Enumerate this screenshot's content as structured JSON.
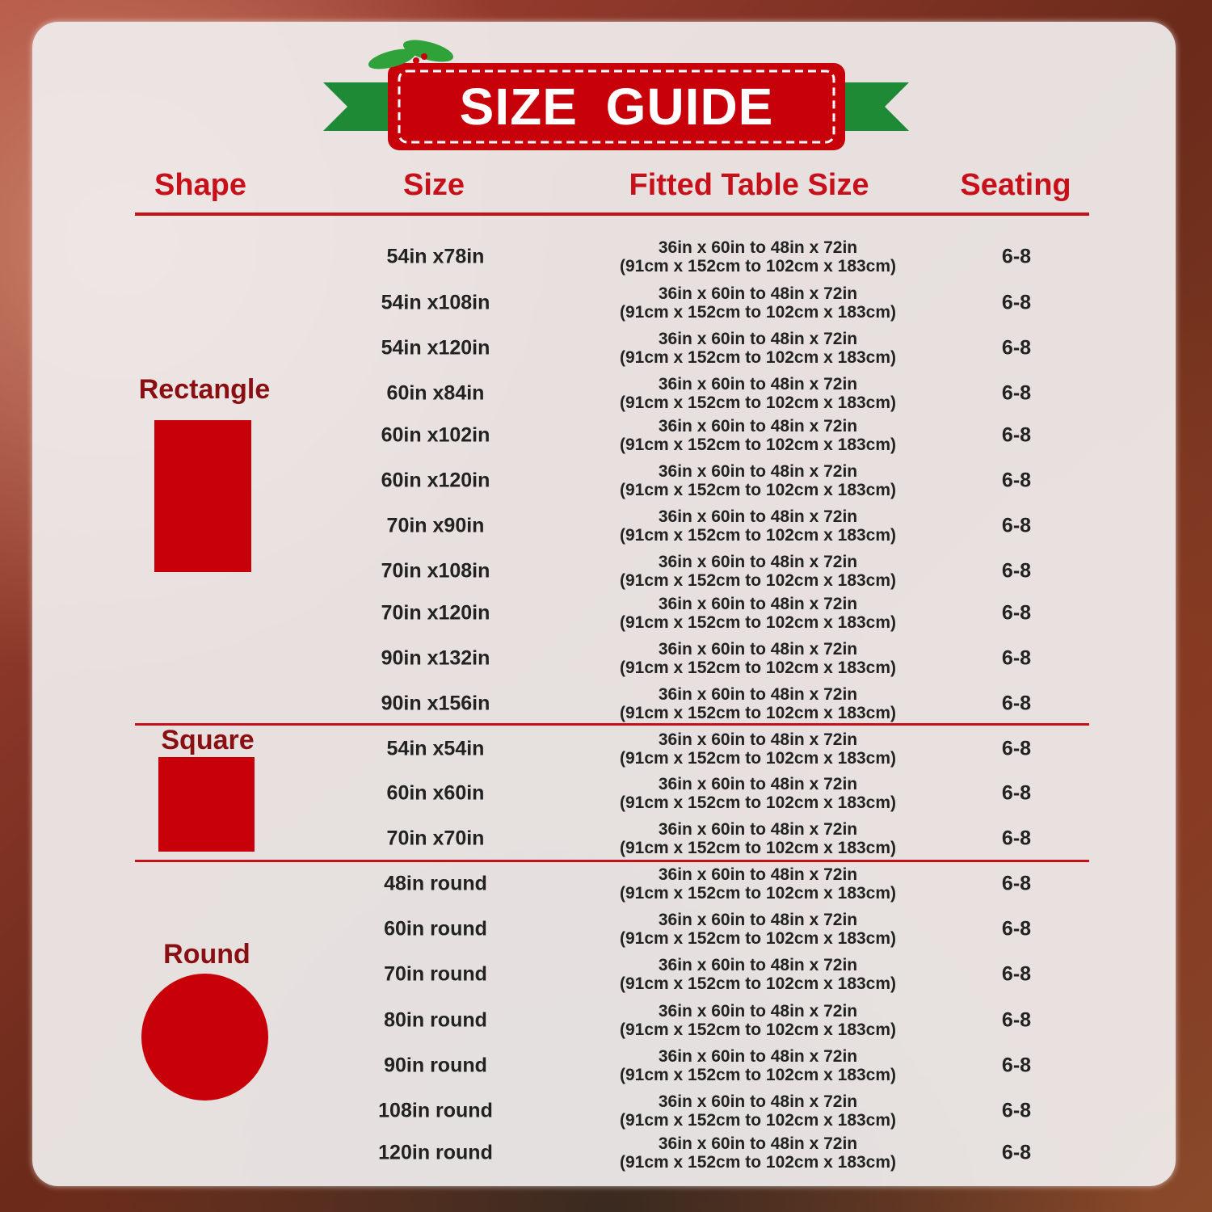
{
  "title": "SIZE  GUIDE",
  "headers": {
    "shape": "Shape",
    "size": "Size",
    "fitted": "Fitted Table Size",
    "seating": "Seating"
  },
  "colors": {
    "accent": "#c8101a",
    "shape_fill": "#c8000a",
    "ribbon": "#1f8a35"
  },
  "shapes": {
    "rectangle": "Rectangle",
    "square": "Square",
    "round": "Round"
  },
  "rows": [
    {
      "size": "54in x78in",
      "fit1": "36in x 60in to 48in x 72in",
      "fit2": "(91cm x 152cm to 102cm x 183cm)",
      "seating": "6-8"
    },
    {
      "size": "54in x108in",
      "fit1": "36in x 60in to 48in x 72in",
      "fit2": "(91cm x 152cm to 102cm x 183cm)",
      "seating": "6-8"
    },
    {
      "size": "54in x120in",
      "fit1": "36in x 60in to 48in x 72in",
      "fit2": "(91cm x 152cm to 102cm x 183cm)",
      "seating": "6-8"
    },
    {
      "size": "60in x84in",
      "fit1": "36in x 60in to 48in x 72in",
      "fit2": "(91cm x 152cm to 102cm x 183cm)",
      "seating": "6-8"
    },
    {
      "size": "60in x102in",
      "fit1": "36in x 60in to 48in x 72in",
      "fit2": "(91cm x 152cm to 102cm x 183cm)",
      "seating": "6-8"
    },
    {
      "size": "60in x120in",
      "fit1": "36in x 60in to 48in x 72in",
      "fit2": "(91cm x 152cm to 102cm x 183cm)",
      "seating": "6-8"
    },
    {
      "size": "70in x90in",
      "fit1": "36in x 60in to 48in x 72in",
      "fit2": "(91cm x 152cm to 102cm x 183cm)",
      "seating": "6-8"
    },
    {
      "size": "70in x108in",
      "fit1": "36in x 60in to 48in x 72in",
      "fit2": "(91cm x 152cm to 102cm x 183cm)",
      "seating": "6-8"
    },
    {
      "size": "70in x120in",
      "fit1": "36in x 60in to 48in x 72in",
      "fit2": "(91cm x 152cm to 102cm x 183cm)",
      "seating": "6-8"
    },
    {
      "size": "90in x132in",
      "fit1": "36in x 60in to 48in x 72in",
      "fit2": "(91cm x 152cm to 102cm x 183cm)",
      "seating": "6-8"
    },
    {
      "size": "90in x156in",
      "fit1": "36in x 60in to 48in x 72in",
      "fit2": "(91cm x 152cm to 102cm x 183cm)",
      "seating": "6-8"
    },
    {
      "size": "54in x54in",
      "fit1": "36in x 60in to 48in x 72in",
      "fit2": "(91cm x 152cm to 102cm x 183cm)",
      "seating": "6-8"
    },
    {
      "size": "60in x60in",
      "fit1": "36in x 60in to 48in x 72in",
      "fit2": "(91cm x 152cm to 102cm x 183cm)",
      "seating": "6-8"
    },
    {
      "size": "70in x70in",
      "fit1": "36in x 60in to 48in x 72in",
      "fit2": "(91cm x 152cm to 102cm x 183cm)",
      "seating": "6-8"
    },
    {
      "size": "48in round",
      "fit1": "36in x 60in to 48in x 72in",
      "fit2": "(91cm x 152cm to 102cm x 183cm)",
      "seating": "6-8"
    },
    {
      "size": "60in round",
      "fit1": "36in x 60in to 48in x 72in",
      "fit2": "(91cm x 152cm to 102cm x 183cm)",
      "seating": "6-8"
    },
    {
      "size": "70in round",
      "fit1": "36in x 60in to 48in x 72in",
      "fit2": "(91cm x 152cm to 102cm x 183cm)",
      "seating": "6-8"
    },
    {
      "size": "80in round",
      "fit1": "36in x 60in to 48in x 72in",
      "fit2": "(91cm x 152cm to 102cm x 183cm)",
      "seating": "6-8"
    },
    {
      "size": "90in round",
      "fit1": "36in x 60in to 48in x 72in",
      "fit2": "(91cm x 152cm to 102cm x 183cm)",
      "seating": "6-8"
    },
    {
      "size": "108in round",
      "fit1": "36in x 60in to 48in x 72in",
      "fit2": "(91cm x 152cm to 102cm x 183cm)",
      "seating": "6-8"
    },
    {
      "size": "120in round",
      "fit1": "36in x 60in to 48in x 72in",
      "fit2": "(91cm x 152cm to 102cm x 183cm)",
      "seating": "6-8"
    }
  ]
}
